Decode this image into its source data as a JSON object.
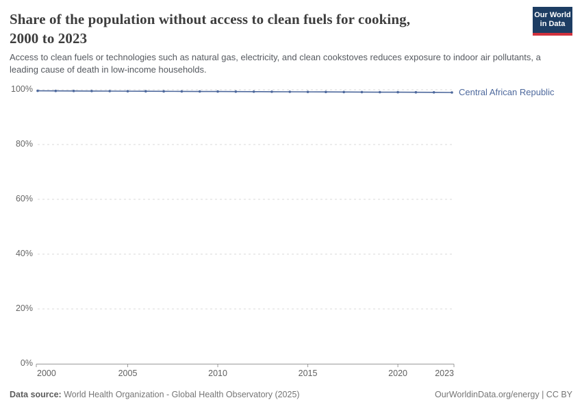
{
  "header": {
    "title_line1": "Share of the population without access to clean fuels for cooking,",
    "title_line2": "2000 to 2023",
    "subtitle": "Access to clean fuels or technologies such as natural gas, electricity, and clean cookstoves reduces exposure to indoor air pollutants, a leading cause of death in low-income households.",
    "logo": {
      "line1": "Our World",
      "line2": "in Data",
      "bg_color": "#1d3d63",
      "accent_color": "#d1313d"
    }
  },
  "chart_data": {
    "type": "line",
    "title": "Share of the population without access to clean fuels for cooking, 2000 to 2023",
    "x": [
      2000,
      2001,
      2002,
      2003,
      2004,
      2005,
      2006,
      2007,
      2008,
      2009,
      2010,
      2011,
      2012,
      2013,
      2014,
      2015,
      2016,
      2017,
      2018,
      2019,
      2020,
      2021,
      2022,
      2023
    ],
    "series": [
      {
        "name": "Central African Republic",
        "color": "#4d689c",
        "values": [
          99.6,
          99.57,
          99.55,
          99.52,
          99.5,
          99.47,
          99.45,
          99.42,
          99.4,
          99.37,
          99.35,
          99.32,
          99.3,
          99.27,
          99.25,
          99.22,
          99.2,
          99.17,
          99.15,
          99.12,
          99.1,
          99.07,
          99.05,
          99.0
        ]
      }
    ],
    "xlabel": "",
    "ylabel": "",
    "ylim": [
      0,
      100
    ],
    "yticks": [
      0,
      20,
      40,
      60,
      80,
      100
    ],
    "ytick_suffix": "%",
    "xticks": [
      2000,
      2005,
      2010,
      2015,
      2020,
      2023
    ],
    "grid": "horizontal-dashed",
    "legend_position": "right-of-line-end",
    "grid_color": "#dadada",
    "axis_color": "#999999"
  },
  "footer": {
    "datasource_label": "Data source:",
    "datasource_value": " World Health Organization - Global Health Observatory (2025)",
    "credit": "OurWorldinData.org/energy | CC BY"
  }
}
